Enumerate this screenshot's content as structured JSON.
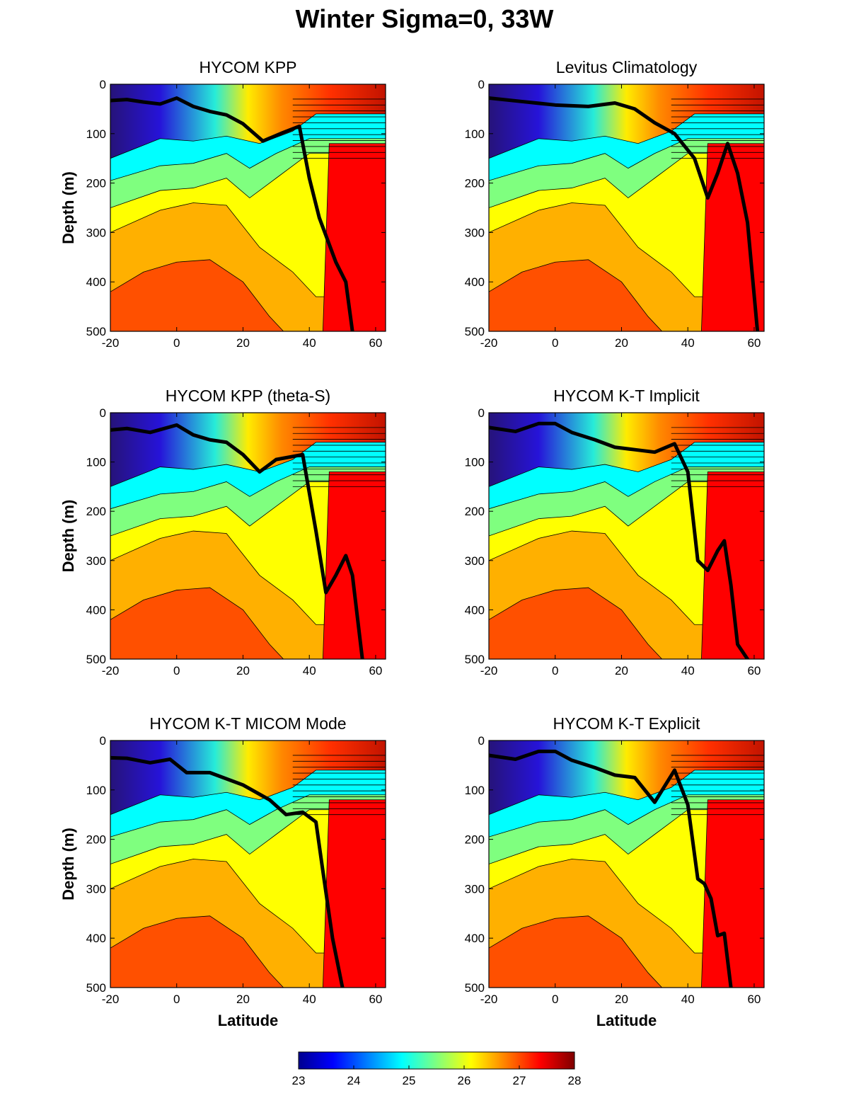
{
  "title": "Winter Sigma=0, 33W",
  "chart_data": {
    "type": "heatmap",
    "title": "Winter Sigma=0, 33W",
    "colorbar": {
      "min": 23,
      "max": 28,
      "ticks": [
        "23",
        "24",
        "25",
        "26",
        "27",
        "28"
      ],
      "colormap": "jet"
    },
    "colors": {
      "c23": "#00008f",
      "c235": "#0000ff",
      "c24": "#007fff",
      "c245": "#00ffff",
      "c25": "#7fff7f",
      "c255": "#ffff00",
      "c26": "#ff7f00",
      "c265": "#ff0000",
      "c27": "#7f0000",
      "line": "#000000"
    },
    "panels": [
      {
        "title": "HYCOM KPP",
        "xlabel": "",
        "ylabel": "Depth (m)",
        "xlim": [
          -20,
          63
        ],
        "ylim": [
          0,
          500
        ],
        "y_reversed": true,
        "x_ticks": [
          "-20",
          "0",
          "20",
          "40",
          "60"
        ],
        "y_ticks": [
          "0",
          "100",
          "200",
          "300",
          "400",
          "500"
        ],
        "mixed_layer_depth": [
          [
            -20,
            33
          ],
          [
            -15,
            31
          ],
          [
            -10,
            36
          ],
          [
            -5,
            40
          ],
          [
            0,
            28
          ],
          [
            5,
            45
          ],
          [
            10,
            55
          ],
          [
            15,
            62
          ],
          [
            20,
            80
          ],
          [
            26,
            115
          ],
          [
            32,
            98
          ],
          [
            37,
            85
          ],
          [
            40,
            190
          ],
          [
            43,
            270
          ],
          [
            48,
            360
          ],
          [
            51,
            400
          ],
          [
            53,
            500
          ]
        ]
      },
      {
        "title": "Levitus Climatology",
        "xlabel": "",
        "ylabel": "",
        "xlim": [
          -20,
          63
        ],
        "ylim": [
          0,
          500
        ],
        "y_reversed": true,
        "x_ticks": [
          "-20",
          "0",
          "20",
          "40",
          "60"
        ],
        "y_ticks": [
          "0",
          "100",
          "200",
          "300",
          "400",
          "500"
        ],
        "mixed_layer_depth": [
          [
            -20,
            28
          ],
          [
            -10,
            35
          ],
          [
            0,
            42
          ],
          [
            10,
            45
          ],
          [
            18,
            38
          ],
          [
            24,
            50
          ],
          [
            30,
            78
          ],
          [
            36,
            100
          ],
          [
            42,
            150
          ],
          [
            46,
            230
          ],
          [
            49,
            180
          ],
          [
            52,
            120
          ],
          [
            55,
            180
          ],
          [
            58,
            280
          ],
          [
            61,
            500
          ]
        ]
      },
      {
        "title": "HYCOM KPP (theta-S)",
        "xlabel": "",
        "ylabel": "Depth (m)",
        "xlim": [
          -20,
          63
        ],
        "ylim": [
          0,
          500
        ],
        "y_reversed": true,
        "x_ticks": [
          "-20",
          "0",
          "20",
          "40",
          "60"
        ],
        "y_ticks": [
          "0",
          "100",
          "200",
          "300",
          "400",
          "500"
        ],
        "mixed_layer_depth": [
          [
            -20,
            35
          ],
          [
            -15,
            32
          ],
          [
            -8,
            40
          ],
          [
            0,
            25
          ],
          [
            5,
            45
          ],
          [
            10,
            55
          ],
          [
            15,
            60
          ],
          [
            20,
            85
          ],
          [
            25,
            120
          ],
          [
            30,
            95
          ],
          [
            38,
            85
          ],
          [
            42,
            240
          ],
          [
            45,
            365
          ],
          [
            48,
            330
          ],
          [
            51,
            290
          ],
          [
            53,
            330
          ],
          [
            56,
            500
          ]
        ]
      },
      {
        "title": "HYCOM K-T Implicit",
        "xlabel": "",
        "ylabel": "",
        "xlim": [
          -20,
          63
        ],
        "ylim": [
          0,
          500
        ],
        "y_reversed": true,
        "x_ticks": [
          "-20",
          "0",
          "20",
          "40",
          "60"
        ],
        "y_ticks": [
          "0",
          "100",
          "200",
          "300",
          "400",
          "500"
        ],
        "mixed_layer_depth": [
          [
            -20,
            30
          ],
          [
            -12,
            38
          ],
          [
            -5,
            22
          ],
          [
            0,
            22
          ],
          [
            5,
            40
          ],
          [
            12,
            55
          ],
          [
            18,
            70
          ],
          [
            24,
            75
          ],
          [
            30,
            80
          ],
          [
            36,
            63
          ],
          [
            40,
            120
          ],
          [
            43,
            300
          ],
          [
            46,
            320
          ],
          [
            49,
            280
          ],
          [
            51,
            260
          ],
          [
            53,
            350
          ],
          [
            55,
            470
          ],
          [
            58,
            500
          ]
        ]
      },
      {
        "title": "HYCOM K-T MICOM Mode",
        "xlabel": "Latitude",
        "ylabel": "Depth (m)",
        "xlim": [
          -20,
          63
        ],
        "ylim": [
          0,
          500
        ],
        "y_reversed": true,
        "x_ticks": [
          "-20",
          "0",
          "20",
          "40",
          "60"
        ],
        "y_ticks": [
          "0",
          "100",
          "200",
          "300",
          "400",
          "500"
        ],
        "mixed_layer_depth": [
          [
            -20,
            35
          ],
          [
            -15,
            36
          ],
          [
            -8,
            45
          ],
          [
            -2,
            38
          ],
          [
            3,
            65
          ],
          [
            10,
            65
          ],
          [
            20,
            90
          ],
          [
            28,
            120
          ],
          [
            33,
            150
          ],
          [
            38,
            145
          ],
          [
            42,
            165
          ],
          [
            44,
            260
          ],
          [
            47,
            400
          ],
          [
            50,
            500
          ]
        ]
      },
      {
        "title": "HYCOM K-T Explicit",
        "xlabel": "Latitude",
        "ylabel": "",
        "xlim": [
          -20,
          63
        ],
        "ylim": [
          0,
          500
        ],
        "y_reversed": true,
        "x_ticks": [
          "-20",
          "0",
          "20",
          "40",
          "60"
        ],
        "y_ticks": [
          "0",
          "100",
          "200",
          "300",
          "400",
          "500"
        ],
        "mixed_layer_depth": [
          [
            -20,
            30
          ],
          [
            -12,
            38
          ],
          [
            -5,
            22
          ],
          [
            0,
            22
          ],
          [
            5,
            40
          ],
          [
            12,
            55
          ],
          [
            18,
            70
          ],
          [
            24,
            75
          ],
          [
            30,
            125
          ],
          [
            36,
            60
          ],
          [
            40,
            130
          ],
          [
            43,
            280
          ],
          [
            45,
            290
          ],
          [
            47,
            320
          ],
          [
            49,
            395
          ],
          [
            51,
            390
          ],
          [
            53,
            500
          ]
        ]
      }
    ]
  }
}
